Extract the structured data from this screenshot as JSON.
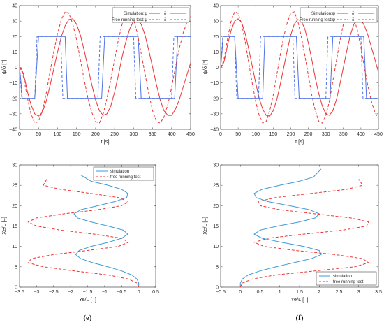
{
  "colors": {
    "simulation": "#4f73e8",
    "free_running": "#ee3333",
    "sim_traj": "#3d9ad8",
    "free_traj": "#ee3333",
    "axis": "#262626"
  },
  "chart_data": [
    {
      "id": "top-left",
      "type": "line",
      "xlabel": "t [s]",
      "ylabel": "ψ/δ [°]",
      "xlim": [
        0,
        450
      ],
      "ylim": [
        -40,
        40
      ],
      "xticks": [
        0,
        50,
        100,
        150,
        200,
        250,
        300,
        350,
        400,
        450
      ],
      "yticks": [
        -40,
        -30,
        -20,
        -10,
        0,
        10,
        20,
        30,
        40
      ],
      "legend": {
        "placement": "top-right",
        "rows": [
          {
            "label": "Simulation:ψ",
            "sym2": "δ"
          },
          {
            "label": "Free running test:ψ",
            "sym2": "δ"
          }
        ]
      },
      "series": [
        {
          "name": "Simulation ψ",
          "color_key": "simulation_psi",
          "style": "solid",
          "x": [
            0,
            5,
            10,
            15,
            20,
            30,
            40,
            50,
            60,
            70,
            80,
            90,
            100,
            110,
            120,
            130,
            140,
            150,
            160,
            170,
            180,
            190,
            200,
            210,
            220,
            230,
            240,
            250,
            260,
            270,
            280,
            290,
            300,
            310,
            320,
            330,
            340,
            350,
            360,
            370,
            380,
            390,
            400,
            410,
            420,
            430,
            440,
            450
          ],
          "y": [
            0,
            -1,
            -4,
            -9,
            -15,
            -24,
            -30,
            -31.5,
            -29,
            -22,
            -12,
            -1,
            10,
            20,
            27,
            31,
            31.5,
            28,
            21,
            11,
            0,
            -11,
            -21,
            -28,
            -31,
            -30,
            -25,
            -16,
            -5,
            7,
            17,
            25,
            30,
            31,
            28,
            21,
            11,
            0,
            -11,
            -21,
            -28,
            -31,
            -31,
            -27,
            -21,
            -13,
            -5,
            3
          ]
        },
        {
          "name": "Simulation δ",
          "color_key": "simulation_delta",
          "style": "solid",
          "x": [
            0,
            4,
            7,
            20,
            40,
            50,
            120,
            126,
            216,
            224,
            312,
            320,
            408,
            416,
            450
          ],
          "y": [
            0,
            -10,
            -20,
            -20,
            -20,
            20,
            20,
            -20,
            -20,
            20,
            20,
            -20,
            -20,
            20,
            20
          ]
        },
        {
          "name": "Free running ψ",
          "color_key": "free_psi",
          "style": "dashed",
          "x": [
            0,
            5,
            10,
            15,
            20,
            30,
            40,
            50,
            60,
            70,
            80,
            90,
            100,
            110,
            120,
            130,
            140,
            150,
            160,
            170,
            180,
            190,
            200,
            210,
            220,
            230,
            240,
            250,
            260,
            270,
            280,
            290,
            300,
            310,
            320,
            330,
            340,
            350,
            360,
            370,
            380,
            390,
            400,
            410,
            420,
            430,
            440,
            450
          ],
          "y": [
            0,
            -2,
            -6,
            -12,
            -19,
            -30,
            -36,
            -35,
            -28,
            -17,
            -3,
            10,
            22,
            31,
            36,
            35,
            28,
            18,
            5,
            -8,
            -20,
            -29,
            -35,
            -36,
            -30,
            -20,
            -8,
            5,
            18,
            28,
            35,
            36,
            31,
            22,
            9,
            -4,
            -17,
            -28,
            -35,
            -36,
            -32,
            -24,
            -13,
            0,
            12,
            22,
            29,
            33
          ]
        },
        {
          "name": "Free running δ",
          "color_key": "free_delta",
          "style": "dashed",
          "x": [
            0,
            3,
            6,
            40,
            46,
            108,
            114,
            206,
            212,
            300,
            306,
            400,
            406,
            450
          ],
          "y": [
            0,
            -10,
            -20,
            -20,
            20,
            20,
            -20,
            -20,
            20,
            20,
            -20,
            -20,
            20,
            20
          ]
        }
      ]
    },
    {
      "id": "top-right",
      "type": "line",
      "xlabel": "t [s]",
      "ylabel": "ψ/δ [°]",
      "xlim": [
        0,
        450
      ],
      "ylim": [
        -40,
        40
      ],
      "xticks": [
        0,
        50,
        100,
        150,
        200,
        250,
        300,
        350,
        400,
        450
      ],
      "yticks": [
        -40,
        -30,
        -20,
        -10,
        0,
        10,
        20,
        30,
        40
      ],
      "legend": {
        "placement": "top-right",
        "rows": [
          {
            "label": "Simulation:ψ",
            "sym2": "δ"
          },
          {
            "label": "Free running test:ψ",
            "sym2": "δ"
          }
        ]
      },
      "series": [
        {
          "name": "Simulation ψ",
          "color_key": "simulation_psi",
          "style": "solid",
          "x": [
            0,
            5,
            10,
            15,
            20,
            30,
            40,
            50,
            60,
            70,
            80,
            90,
            100,
            110,
            120,
            130,
            140,
            150,
            160,
            170,
            180,
            190,
            200,
            210,
            220,
            230,
            240,
            250,
            260,
            270,
            280,
            290,
            300,
            310,
            320,
            330,
            340,
            350,
            360,
            370,
            380,
            390,
            400,
            410,
            420,
            430,
            440,
            450
          ],
          "y": [
            0,
            1,
            4,
            9,
            15,
            24,
            30,
            31.5,
            29,
            22,
            12,
            1,
            -10,
            -20,
            -27,
            -31,
            -31.5,
            -28,
            -21,
            -11,
            0,
            11,
            21,
            28,
            31,
            30,
            25,
            16,
            5,
            -7,
            -17,
            -25,
            -30,
            -31,
            -28,
            -21,
            -11,
            0,
            11,
            21,
            28,
            31,
            31,
            27,
            21,
            13,
            5,
            -3
          ]
        },
        {
          "name": "Simulation δ",
          "color_key": "simulation_delta",
          "style": "solid",
          "x": [
            0,
            4,
            7,
            20,
            40,
            50,
            120,
            126,
            216,
            224,
            312,
            320,
            408,
            416,
            450
          ],
          "y": [
            0,
            10,
            20,
            20,
            20,
            -20,
            -20,
            20,
            20,
            -20,
            -20,
            20,
            20,
            -20,
            -20
          ]
        },
        {
          "name": "Free running ψ",
          "color_key": "free_psi",
          "style": "dashed",
          "x": [
            0,
            5,
            10,
            15,
            20,
            30,
            40,
            50,
            60,
            70,
            80,
            90,
            100,
            110,
            120,
            130,
            140,
            150,
            160,
            170,
            180,
            190,
            200,
            210,
            220,
            230,
            240,
            250,
            260,
            270,
            280,
            290,
            300,
            310,
            320,
            330,
            340,
            350,
            360,
            370,
            380,
            390,
            400,
            410,
            420,
            430,
            440,
            450
          ],
          "y": [
            0,
            2,
            6,
            12,
            19,
            30,
            36,
            35,
            28,
            17,
            3,
            -10,
            -22,
            -31,
            -36,
            -35,
            -28,
            -18,
            -5,
            8,
            20,
            29,
            35,
            36,
            30,
            20,
            8,
            -5,
            -18,
            -28,
            -35,
            -36,
            -31,
            -22,
            -9,
            4,
            17,
            28,
            35,
            36,
            32,
            24,
            13,
            0,
            -12,
            -22,
            -29,
            -33
          ]
        },
        {
          "name": "Free running δ",
          "color_key": "free_delta",
          "style": "dashed",
          "x": [
            0,
            3,
            6,
            40,
            46,
            108,
            114,
            206,
            212,
            300,
            306,
            400,
            406,
            450
          ],
          "y": [
            0,
            10,
            20,
            20,
            -20,
            -20,
            20,
            20,
            -20,
            -20,
            20,
            20,
            -20,
            -20
          ]
        }
      ]
    },
    {
      "id": "bottom-left",
      "type": "line",
      "panel_label": "(e)",
      "xlabel": "Ye/L [–]",
      "ylabel": "Xe/L [–]",
      "xlim": [
        -3.5,
        0.5
      ],
      "ylim": [
        0,
        30
      ],
      "xticks": [
        -3.5,
        -3,
        -2.5,
        -2,
        -1.5,
        -1,
        -0.5,
        0,
        0.5
      ],
      "yticks": [
        0,
        5,
        10,
        15,
        20,
        25,
        30
      ],
      "legend": {
        "placement": "top-right",
        "entries": [
          "simulation",
          "free running test"
        ]
      },
      "series": [
        {
          "name": "simulation",
          "color_key": "sim_traj",
          "style": "solid",
          "x": [
            0,
            0,
            -0.05,
            -0.2,
            -0.5,
            -0.9,
            -1.35,
            -1.7,
            -1.85,
            -1.75,
            -1.4,
            -0.9,
            -0.5,
            -0.32,
            -0.45,
            -0.9,
            -1.4,
            -1.8,
            -1.9,
            -1.7,
            -1.2,
            -0.7,
            -0.35,
            -0.32,
            -0.5,
            -0.9,
            -1.4,
            -1.7
          ],
          "y": [
            0,
            1,
            2,
            3,
            4,
            5,
            6,
            7,
            8,
            9,
            10,
            11,
            12,
            13,
            14,
            15,
            16,
            17,
            18,
            19,
            20,
            21,
            22,
            23,
            24,
            25,
            26,
            27.5
          ]
        },
        {
          "name": "free running test",
          "color_key": "free_traj",
          "style": "dashed",
          "x": [
            0,
            -0.05,
            -0.3,
            -0.9,
            -1.9,
            -2.8,
            -3.25,
            -3.15,
            -2.5,
            -1.5,
            -0.6,
            -0.3,
            -0.5,
            -1.3,
            -2.3,
            -3.0,
            -3.25,
            -3.0,
            -2.2,
            -1.2,
            -0.5,
            -0.3,
            -0.6,
            -1.4,
            -2.3,
            -2.8,
            -2.7
          ],
          "y": [
            0,
            1,
            2,
            3,
            4,
            5,
            6,
            7,
            8,
            9,
            10,
            11,
            12,
            13,
            14,
            15,
            16,
            17,
            18,
            19,
            20,
            21,
            22,
            23,
            24,
            25,
            26.5
          ]
        }
      ]
    },
    {
      "id": "bottom-right",
      "type": "line",
      "panel_label": "(f)",
      "xlabel": "Ye/L [–]",
      "ylabel": "Xe/L [–]",
      "xlim": [
        -0.5,
        3.5
      ],
      "ylim": [
        0,
        30
      ],
      "xticks": [
        -0.5,
        0,
        0.5,
        1,
        1.5,
        2,
        2.5,
        3,
        3.5
      ],
      "yticks": [
        0,
        5,
        10,
        15,
        20,
        25,
        30
      ],
      "legend": {
        "placement": "bottom-right",
        "entries": [
          "simulation",
          "free running test"
        ]
      },
      "series": [
        {
          "name": "simulation",
          "color_key": "sim_traj",
          "style": "solid",
          "x": [
            0,
            0,
            0.05,
            0.2,
            0.5,
            0.9,
            1.35,
            1.8,
            2.05,
            2.0,
            1.6,
            1.05,
            0.55,
            0.35,
            0.5,
            0.95,
            1.5,
            1.9,
            2.0,
            1.75,
            1.25,
            0.7,
            0.4,
            0.35,
            0.55,
            1.0,
            1.5,
            1.85,
            2.05
          ],
          "y": [
            0,
            1,
            2,
            3,
            4,
            5,
            6,
            7,
            8,
            9,
            10,
            11,
            12,
            13,
            14,
            15,
            16,
            17,
            18,
            19,
            20,
            21,
            22,
            23,
            24,
            25,
            26,
            27,
            29
          ]
        },
        {
          "name": "free running test",
          "color_key": "free_traj",
          "style": "dashed",
          "x": [
            0,
            0.05,
            0.3,
            0.9,
            1.9,
            2.9,
            3.25,
            3.1,
            2.4,
            1.4,
            0.6,
            0.35,
            0.7,
            1.6,
            2.6,
            3.2,
            3.25,
            2.8,
            1.9,
            1.0,
            0.5,
            0.45,
            0.9,
            1.8,
            2.7,
            3.1,
            3.0
          ],
          "y": [
            0,
            1,
            2,
            3,
            4,
            5,
            6,
            7,
            8,
            9,
            10,
            11,
            12,
            13,
            14,
            15,
            16,
            17,
            18,
            19,
            20,
            21,
            22,
            23,
            24,
            25,
            26.5
          ]
        }
      ]
    }
  ]
}
